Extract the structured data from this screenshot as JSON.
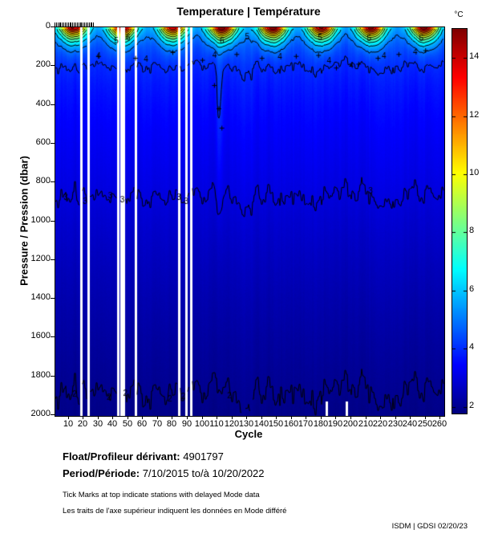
{
  "chart_data": {
    "type": "heatmap",
    "title": "Temperature | Température",
    "xlabel": "Cycle",
    "ylabel": "Pressure / Pression (dbar)",
    "xlim": [
      1,
      262
    ],
    "ylim": [
      0,
      2000
    ],
    "x_ticks": [
      10,
      20,
      30,
      40,
      50,
      60,
      70,
      80,
      90,
      100,
      110,
      120,
      130,
      140,
      150,
      160,
      170,
      180,
      190,
      200,
      210,
      220,
      230,
      240,
      250,
      260
    ],
    "y_ticks": [
      0,
      200,
      400,
      600,
      800,
      1000,
      1200,
      1400,
      1600,
      1800,
      2000
    ],
    "grid": false,
    "colorbar": {
      "label": "°C",
      "ticks": [
        2,
        4,
        6,
        8,
        10,
        12,
        14
      ],
      "min": 1.8,
      "max": 15.0,
      "colormap": "jet",
      "position": "right"
    },
    "base_profile": [
      [
        0,
        5.0
      ],
      [
        30,
        4.8
      ],
      [
        60,
        4.6
      ],
      [
        100,
        4.35
      ],
      [
        150,
        4.15
      ],
      [
        200,
        3.95
      ],
      [
        300,
        3.72
      ],
      [
        400,
        3.55
      ],
      [
        500,
        3.42
      ],
      [
        600,
        3.3
      ],
      [
        700,
        3.2
      ],
      [
        800,
        3.09
      ],
      [
        870,
        3.0
      ],
      [
        1000,
        2.83
      ],
      [
        1200,
        2.6
      ],
      [
        1400,
        2.4
      ],
      [
        1600,
        2.22
      ],
      [
        1800,
        2.06
      ],
      [
        1900,
        1.98
      ],
      [
        2000,
        1.92
      ]
    ],
    "seasonal": {
      "winter_surface": 5.0,
      "peak_width_cycles": 9,
      "surface_layer_dbar": 60,
      "warm_peaks": [
        {
          "cycle": 13,
          "amp": 9.3
        },
        {
          "cycle": 46,
          "amp": 9.6
        },
        {
          "cycle": 80,
          "amp": 8.9
        },
        {
          "cycle": 113,
          "amp": 9.9
        },
        {
          "cycle": 147,
          "amp": 9.9
        },
        {
          "cycle": 180,
          "amp": 9.3
        },
        {
          "cycle": 213,
          "amp": 9.6
        },
        {
          "cycle": 249,
          "amp": 9.8
        }
      ]
    },
    "anomalies": [
      {
        "cycle": 111,
        "cycle_width": 2.2,
        "amp": 0.55,
        "center_dbar": 450,
        "depth_width": 420
      }
    ],
    "contour_levels": [
      2,
      3,
      4,
      5,
      6,
      7,
      8,
      9,
      10,
      11,
      12,
      13,
      14
    ],
    "isotherm_mean_depths_dbar": {
      "3": 870,
      "2": 1890
    },
    "missing_data_cycles": [
      18,
      23,
      43,
      45,
      47,
      55,
      84,
      89,
      92
    ],
    "partial_missing": [
      {
        "cycle": 183,
        "from_dbar": 1930
      },
      {
        "cycle": 197,
        "from_dbar": 1930
      }
    ],
    "delayed_mode_cycles": {
      "first": 1,
      "last": 27
    },
    "contour_labels": [
      {
        "level": 4,
        "cycle": 30,
        "dbar": 150
      },
      {
        "level": 5,
        "cycle": 42,
        "dbar": 70
      },
      {
        "level": 6,
        "cycle": 50,
        "dbar": 55
      },
      {
        "level": 4,
        "cycle": 62,
        "dbar": 165
      },
      {
        "level": 6,
        "cycle": 113,
        "dbar": 70
      },
      {
        "level": 4,
        "cycle": 108,
        "dbar": 145
      },
      {
        "level": 5,
        "cycle": 130,
        "dbar": 50
      },
      {
        "level": 4,
        "cycle": 152,
        "dbar": 155
      },
      {
        "level": 5,
        "cycle": 179,
        "dbar": 55
      },
      {
        "level": 4,
        "cycle": 185,
        "dbar": 175
      },
      {
        "level": 4,
        "cycle": 200,
        "dbar": 200
      },
      {
        "level": 5,
        "cycle": 212,
        "dbar": 60
      },
      {
        "level": 4,
        "cycle": 222,
        "dbar": 150
      },
      {
        "level": 4,
        "cycle": 243,
        "dbar": 130
      },
      {
        "level": 5,
        "cycle": 247,
        "dbar": 60
      },
      {
        "level": 3,
        "cycle": 8,
        "dbar": 880
      },
      {
        "level": 3,
        "cycle": 21,
        "dbar": 900
      },
      {
        "level": 3,
        "cycle": 38,
        "dbar": 870
      },
      {
        "level": 3,
        "cycle": 46,
        "dbar": 890
      },
      {
        "level": 3,
        "cycle": 84,
        "dbar": 880
      },
      {
        "level": 3,
        "cycle": 89,
        "dbar": 900
      },
      {
        "level": 3,
        "cycle": 213,
        "dbar": 845
      },
      {
        "level": 2,
        "cycle": 14,
        "dbar": 1895
      },
      {
        "level": 2,
        "cycle": 37,
        "dbar": 1910
      },
      {
        "level": 2,
        "cycle": 48,
        "dbar": 1890
      },
      {
        "level": 2,
        "cycle": 78,
        "dbar": 1920
      },
      {
        "level": 2,
        "cycle": 87,
        "dbar": 1905
      },
      {
        "level": 2,
        "cycle": 118,
        "dbar": 1900
      }
    ],
    "plus_marks": [
      {
        "cycle": 30,
        "dbar": 150
      },
      {
        "cycle": 55,
        "dbar": 160
      },
      {
        "cycle": 80,
        "dbar": 130
      },
      {
        "cycle": 100,
        "dbar": 170
      },
      {
        "cycle": 108,
        "dbar": 300
      },
      {
        "cycle": 123,
        "dbar": 140
      },
      {
        "cycle": 140,
        "dbar": 160
      },
      {
        "cycle": 163,
        "dbar": 150
      },
      {
        "cycle": 178,
        "dbar": 145
      },
      {
        "cycle": 190,
        "dbar": 210
      },
      {
        "cycle": 205,
        "dbar": 190
      },
      {
        "cycle": 218,
        "dbar": 160
      },
      {
        "cycle": 232,
        "dbar": 140
      },
      {
        "cycle": 250,
        "dbar": 120
      },
      {
        "cycle": 111,
        "dbar": 420
      },
      {
        "cycle": 113,
        "dbar": 520
      }
    ]
  },
  "footer": {
    "float_label": "Float/Profileur dérivant:",
    "float_value": "4901797",
    "period_label": "Period/Période:",
    "period_value": "7/10/2015  to/à  10/20/2022",
    "note_en": "Tick Marks at top indicate stations with delayed Mode data",
    "note_fr": "Les traits de l'axe supérieur indiquent les données en Mode différé",
    "credit": "ISDM | GDSI  02/20/23"
  }
}
